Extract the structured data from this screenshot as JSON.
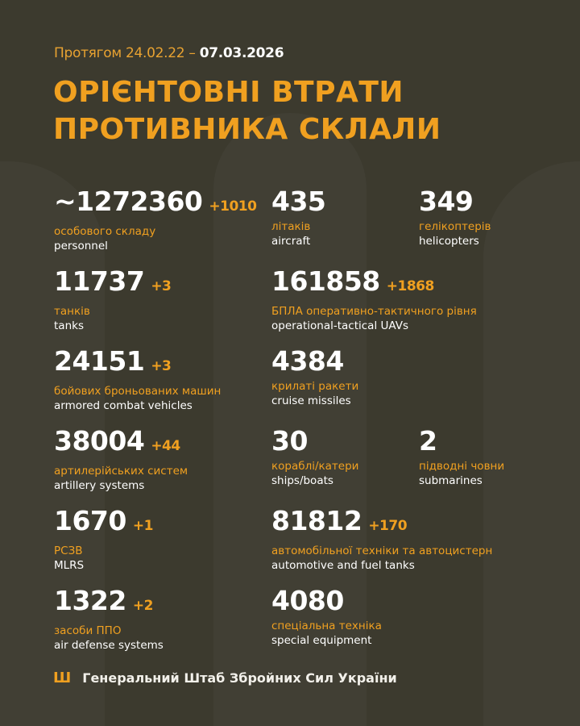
{
  "header": {
    "period_prefix": "Протягом 24.02.22 –",
    "period_date": "07.03.2026",
    "title_line1": "ОРІЄНТОВНІ ВТРАТИ",
    "title_line2": "ПРОТИВНИКА СКЛАЛИ"
  },
  "accent_color": "#f0a020",
  "stats": [
    {
      "value": "~1272360",
      "delta": "+1010",
      "ua": "особового складу",
      "en": "personnel"
    },
    {
      "value": "435",
      "delta": "",
      "ua": "літаків",
      "en": "aircraft"
    },
    {
      "value": "349",
      "delta": "",
      "ua": "гелікоптерів",
      "en": "helicopters"
    },
    {
      "value": "11737",
      "delta": "+3",
      "ua": "танків",
      "en": "tanks"
    },
    {
      "value": "161858",
      "delta": "+1868",
      "ua": "БПЛА оперативно-тактичного рівня",
      "en": "operational-tactical UAVs"
    },
    {
      "value": "24151",
      "delta": "+3",
      "ua": "бойових броньованих машин",
      "en": "armored combat vehicles"
    },
    {
      "value": "4384",
      "delta": "",
      "ua": "крилаті ракети",
      "en": "cruise missiles"
    },
    {
      "value": "38004",
      "delta": "+44",
      "ua": "артилерійських систем",
      "en": "artillery systems"
    },
    {
      "value": "30",
      "delta": "",
      "ua": "кораблі/катери",
      "en": "ships/boats"
    },
    {
      "value": "2",
      "delta": "",
      "ua": "підводні човни",
      "en": "submarines"
    },
    {
      "value": "1670",
      "delta": "+1",
      "ua": "РСЗВ",
      "en": "MLRS"
    },
    {
      "value": "81812",
      "delta": "+170",
      "ua": "автомобільної техніки та автоцистерн",
      "en": "automotive and fuel tanks"
    },
    {
      "value": "1322",
      "delta": "+2",
      "ua": "засоби ППО",
      "en": "air defense systems"
    },
    {
      "value": "4080",
      "delta": "",
      "ua": "спеціальна техніка",
      "en": "special equipment"
    }
  ],
  "footer": {
    "icon": "trident-icon",
    "text": "Генеральний Штаб Збройних Сил України"
  }
}
